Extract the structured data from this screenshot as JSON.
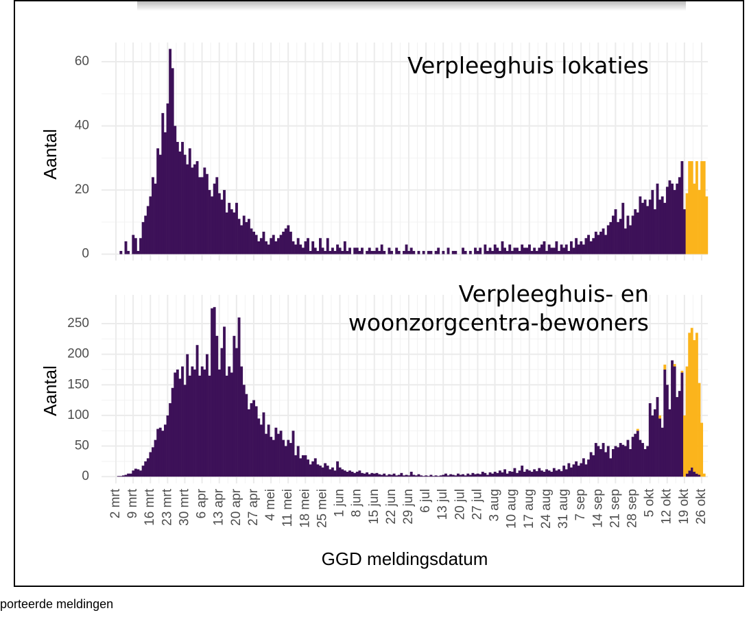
{
  "chart_data": [
    {
      "type": "bar",
      "annotation": [
        "Verpleeghuis lokaties"
      ],
      "ylabel": "Aantal",
      "ylim": [
        -2,
        66
      ],
      "yticks": [
        0,
        20,
        40,
        60
      ],
      "grid": true,
      "series": [
        {
          "color": "#3d1158",
          "values": [
            0,
            0,
            1,
            0,
            4,
            1,
            0,
            6,
            5,
            1,
            5,
            10,
            12,
            15,
            18,
            24,
            22,
            33,
            31,
            44,
            38,
            47,
            64,
            58,
            40,
            35,
            32,
            35,
            31,
            28,
            33,
            27,
            28,
            29,
            24,
            24,
            27,
            25,
            20,
            18,
            22,
            24,
            19,
            17,
            20,
            13,
            16,
            14,
            13,
            16,
            11,
            9,
            12,
            10,
            11,
            8,
            7,
            6,
            4,
            5,
            7,
            4,
            3,
            5,
            6,
            4,
            5,
            6,
            7,
            8,
            9,
            7,
            4,
            3,
            5,
            3,
            2,
            4,
            5,
            1,
            4,
            2,
            1,
            5,
            2,
            1,
            5,
            1,
            2,
            1,
            3,
            2,
            1,
            4,
            1,
            2,
            0,
            2,
            2,
            1,
            2,
            0,
            1,
            2,
            1,
            1,
            2,
            1,
            3,
            1,
            0,
            2,
            1,
            0,
            2,
            1,
            0,
            1,
            3,
            1,
            2,
            1,
            0,
            1,
            0,
            1,
            0,
            1,
            1,
            0,
            1,
            2,
            0,
            1,
            0,
            2,
            0,
            1,
            1,
            0,
            0,
            2,
            1,
            0,
            1,
            0,
            2,
            1,
            2,
            0,
            3,
            1,
            2,
            1,
            3,
            2,
            1,
            4,
            2,
            1,
            3,
            1,
            2,
            2,
            1,
            3,
            2,
            2,
            3,
            1,
            2,
            1,
            2,
            3,
            4,
            1,
            3,
            2,
            2,
            4,
            1,
            3,
            2,
            3,
            1,
            4,
            2,
            5,
            3,
            4,
            3,
            5,
            6,
            4,
            5,
            7,
            6,
            7,
            8,
            6,
            9,
            10,
            12,
            14,
            10,
            11,
            16,
            8,
            12,
            9,
            12,
            14,
            13,
            18,
            16,
            17,
            15,
            17,
            20,
            14,
            22,
            17,
            18,
            16,
            21,
            23,
            22,
            20,
            22,
            24,
            29,
            14,
            0,
            0,
            0,
            0,
            0,
            0,
            0,
            0,
            0
          ]
        },
        {
          "color": "#fbb41c",
          "values": [
            0,
            0,
            0,
            0,
            0,
            0,
            0,
            0,
            0,
            0,
            0,
            0,
            0,
            0,
            0,
            0,
            0,
            0,
            0,
            0,
            0,
            0,
            0,
            0,
            0,
            0,
            0,
            0,
            0,
            0,
            0,
            0,
            0,
            0,
            0,
            0,
            0,
            0,
            0,
            0,
            0,
            0,
            0,
            0,
            0,
            0,
            0,
            0,
            0,
            0,
            0,
            0,
            0,
            0,
            0,
            0,
            0,
            0,
            0,
            0,
            0,
            0,
            0,
            0,
            0,
            0,
            0,
            0,
            0,
            0,
            0,
            0,
            0,
            0,
            0,
            0,
            0,
            0,
            0,
            0,
            0,
            0,
            0,
            0,
            0,
            0,
            0,
            0,
            0,
            0,
            0,
            0,
            0,
            0,
            0,
            0,
            0,
            0,
            0,
            0,
            0,
            0,
            0,
            0,
            0,
            0,
            0,
            0,
            0,
            0,
            0,
            0,
            0,
            0,
            0,
            0,
            0,
            0,
            0,
            0,
            0,
            0,
            0,
            0,
            0,
            0,
            0,
            0,
            0,
            0,
            0,
            0,
            0,
            0,
            0,
            0,
            0,
            0,
            0,
            0,
            0,
            0,
            0,
            0,
            0,
            0,
            0,
            0,
            0,
            0,
            0,
            0,
            0,
            0,
            0,
            0,
            0,
            0,
            0,
            0,
            0,
            0,
            0,
            0,
            0,
            0,
            0,
            0,
            0,
            0,
            0,
            0,
            0,
            0,
            0,
            0,
            0,
            0,
            0,
            0,
            0,
            0,
            0,
            0,
            0,
            0,
            0,
            0,
            0,
            0,
            0,
            0,
            0,
            0,
            0,
            0,
            0,
            0,
            0,
            0,
            0,
            0,
            0,
            0,
            0,
            0,
            0,
            0,
            0,
            0,
            0,
            0,
            0,
            0,
            0,
            0,
            0,
            0,
            0,
            0,
            0,
            0,
            0,
            0,
            0,
            0,
            0,
            0,
            0,
            0,
            0,
            0,
            19,
            29,
            29,
            22,
            29,
            20,
            29,
            29,
            18
          ]
        }
      ]
    },
    {
      "type": "bar",
      "annotation": [
        "Verpleeghuis- en",
        "woonzorgcentra-bewoners"
      ],
      "ylabel": "Aantal",
      "xlabel": "GGD meldingsdatum",
      "ylim": [
        -11,
        297
      ],
      "yticks": [
        0,
        50,
        100,
        150,
        200,
        250
      ],
      "grid": true,
      "categories": [
        "2 mrt",
        null,
        null,
        null,
        null,
        null,
        null,
        "9 mrt",
        null,
        null,
        null,
        null,
        null,
        null,
        "16 mrt",
        null,
        null,
        null,
        null,
        null,
        null,
        "23 mrt",
        null,
        null,
        null,
        null,
        null,
        null,
        "30 mrt",
        null,
        null,
        null,
        null,
        null,
        null,
        "6 apr",
        null,
        null,
        null,
        null,
        null,
        null,
        "13 apr",
        null,
        null,
        null,
        null,
        null,
        null,
        "20 apr",
        null,
        null,
        null,
        null,
        null,
        null,
        "27 apr",
        null,
        null,
        null,
        null,
        null,
        null,
        "4 mei",
        null,
        null,
        null,
        null,
        null,
        null,
        "11 mei",
        null,
        null,
        null,
        null,
        null,
        null,
        "18 mei",
        null,
        null,
        null,
        null,
        null,
        null,
        "25 mei",
        null,
        null,
        null,
        null,
        null,
        null,
        "1 jun",
        null,
        null,
        null,
        null,
        null,
        null,
        "8 jun",
        null,
        null,
        null,
        null,
        null,
        null,
        "15 jun",
        null,
        null,
        null,
        null,
        null,
        null,
        "22 jun",
        null,
        null,
        null,
        null,
        null,
        null,
        "29 jun",
        null,
        null,
        null,
        null,
        null,
        null,
        "6 jul",
        null,
        null,
        null,
        null,
        null,
        null,
        "13 jul",
        null,
        null,
        null,
        null,
        null,
        null,
        "20 jul",
        null,
        null,
        null,
        null,
        null,
        null,
        "27 jul",
        null,
        null,
        null,
        null,
        null,
        null,
        "3 aug",
        null,
        null,
        null,
        null,
        null,
        null,
        "10 aug",
        null,
        null,
        null,
        null,
        null,
        null,
        "17 aug",
        null,
        null,
        null,
        null,
        null,
        null,
        "24 aug",
        null,
        null,
        null,
        null,
        null,
        null,
        "31 aug",
        null,
        null,
        null,
        null,
        null,
        null,
        "7 sep",
        null,
        null,
        null,
        null,
        null,
        null,
        "14 sep",
        null,
        null,
        null,
        null,
        null,
        null,
        "21 sep",
        null,
        null,
        null,
        null,
        null,
        null,
        "28 sep",
        null,
        null,
        null,
        null,
        null,
        null,
        "5 okt",
        null,
        null,
        null,
        null,
        null,
        null,
        "12 okt",
        null,
        null,
        null,
        null,
        null,
        null,
        "19 okt",
        null,
        null,
        null,
        null,
        null,
        null,
        "26 okt",
        null,
        null
      ],
      "series": [
        {
          "color": "#3d1158",
          "values": [
            0,
            1,
            1,
            2,
            3,
            5,
            5,
            10,
            13,
            12,
            10,
            18,
            25,
            30,
            40,
            48,
            60,
            78,
            80,
            75,
            85,
            100,
            120,
            145,
            170,
            175,
            160,
            180,
            150,
            200,
            165,
            180,
            175,
            215,
            165,
            180,
            175,
            200,
            165,
            275,
            277,
            230,
            175,
            210,
            245,
            165,
            180,
            170,
            230,
            210,
            260,
            180,
            150,
            135,
            110,
            120,
            125,
            115,
            95,
            85,
            105,
            70,
            85,
            65,
            60,
            80,
            70,
            75,
            60,
            50,
            60,
            55,
            75,
            35,
            50,
            30,
            35,
            35,
            28,
            20,
            25,
            30,
            20,
            18,
            15,
            22,
            18,
            12,
            15,
            10,
            25,
            15,
            12,
            10,
            8,
            10,
            8,
            6,
            8,
            10,
            6,
            5,
            7,
            4,
            6,
            5,
            6,
            4,
            3,
            5,
            2,
            4,
            3,
            5,
            2,
            3,
            6,
            2,
            3,
            2,
            8,
            3,
            2,
            4,
            2,
            1,
            2,
            1,
            3,
            1,
            2,
            1,
            2,
            3,
            5,
            2,
            4,
            3,
            2,
            5,
            3,
            4,
            2,
            5,
            3,
            6,
            4,
            5,
            4,
            8,
            6,
            3,
            7,
            5,
            8,
            6,
            10,
            7,
            12,
            5,
            9,
            8,
            14,
            6,
            10,
            18,
            8,
            12,
            10,
            8,
            12,
            9,
            14,
            10,
            8,
            12,
            10,
            8,
            14,
            10,
            12,
            9,
            18,
            12,
            22,
            15,
            20,
            25,
            18,
            22,
            30,
            20,
            28,
            40,
            35,
            55,
            50,
            45,
            55,
            40,
            50,
            30,
            45,
            50,
            48,
            55,
            52,
            50,
            60,
            45,
            65,
            70,
            75,
            60,
            55,
            45,
            50,
            120,
            100,
            110,
            130,
            95,
            80,
            175,
            150,
            110,
            190,
            180,
            130,
            140,
            170,
            0,
            5,
            10,
            15,
            8,
            5,
            3,
            0,
            0,
            0
          ]
        },
        {
          "color": "#fbb41c",
          "values": [
            0,
            0,
            0,
            0,
            0,
            0,
            0,
            0,
            0,
            0,
            0,
            0,
            0,
            0,
            0,
            0,
            0,
            0,
            0,
            0,
            0,
            0,
            0,
            0,
            0,
            0,
            0,
            0,
            0,
            0,
            0,
            0,
            0,
            0,
            0,
            0,
            0,
            0,
            0,
            0,
            0,
            0,
            0,
            0,
            0,
            0,
            0,
            0,
            0,
            0,
            0,
            0,
            0,
            0,
            0,
            0,
            0,
            0,
            0,
            0,
            0,
            0,
            0,
            0,
            0,
            0,
            0,
            0,
            0,
            0,
            0,
            0,
            0,
            0,
            0,
            0,
            0,
            0,
            0,
            0,
            0,
            0,
            0,
            0,
            0,
            0,
            0,
            0,
            0,
            0,
            0,
            0,
            0,
            0,
            0,
            0,
            0,
            0,
            0,
            0,
            0,
            0,
            0,
            0,
            0,
            0,
            0,
            0,
            0,
            0,
            0,
            0,
            0,
            0,
            0,
            0,
            0,
            0,
            0,
            0,
            0,
            0,
            0,
            0,
            0,
            0,
            0,
            0,
            0,
            0,
            0,
            0,
            0,
            0,
            0,
            0,
            0,
            0,
            0,
            0,
            0,
            0,
            0,
            0,
            0,
            0,
            0,
            0,
            0,
            0,
            0,
            0,
            0,
            0,
            0,
            0,
            0,
            0,
            0,
            0,
            0,
            0,
            0,
            0,
            0,
            0,
            0,
            0,
            0,
            0,
            0,
            0,
            0,
            0,
            0,
            0,
            0,
            0,
            0,
            0,
            0,
            0,
            0,
            0,
            0,
            0,
            0,
            0,
            0,
            0,
            0,
            0,
            0,
            0,
            0,
            0,
            0,
            0,
            0,
            0,
            0,
            0,
            0,
            0,
            0,
            0,
            0,
            0,
            0,
            0,
            0,
            0,
            3,
            0,
            0,
            0,
            0,
            0,
            0,
            0,
            0,
            5,
            0,
            8,
            0,
            0,
            0,
            4,
            0,
            0,
            3,
            100,
            175,
            225,
            228,
            215,
            230,
            150,
            88,
            5,
            0
          ]
        }
      ]
    }
  ],
  "footer": "porteerde meldingen"
}
